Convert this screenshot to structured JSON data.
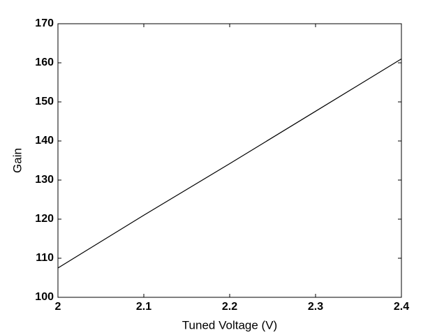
{
  "chart_data": {
    "type": "line",
    "x_label": "Tuned Voltage (V)",
    "y_label": "Gain",
    "x": [
      2.0,
      2.1,
      2.2,
      2.3,
      2.4
    ],
    "series": [
      {
        "color": "#000000",
        "values": [
          107.5,
          121,
          134.2,
          147.6,
          161
        ]
      }
    ],
    "xlim": [
      2,
      2.4
    ],
    "xticks": [
      2,
      2.1,
      2.2,
      2.3,
      2.4
    ],
    "ylim": [
      100,
      170
    ],
    "yticks": [
      100,
      110,
      120,
      130,
      140,
      150,
      160,
      170
    ],
    "grid": false
  }
}
